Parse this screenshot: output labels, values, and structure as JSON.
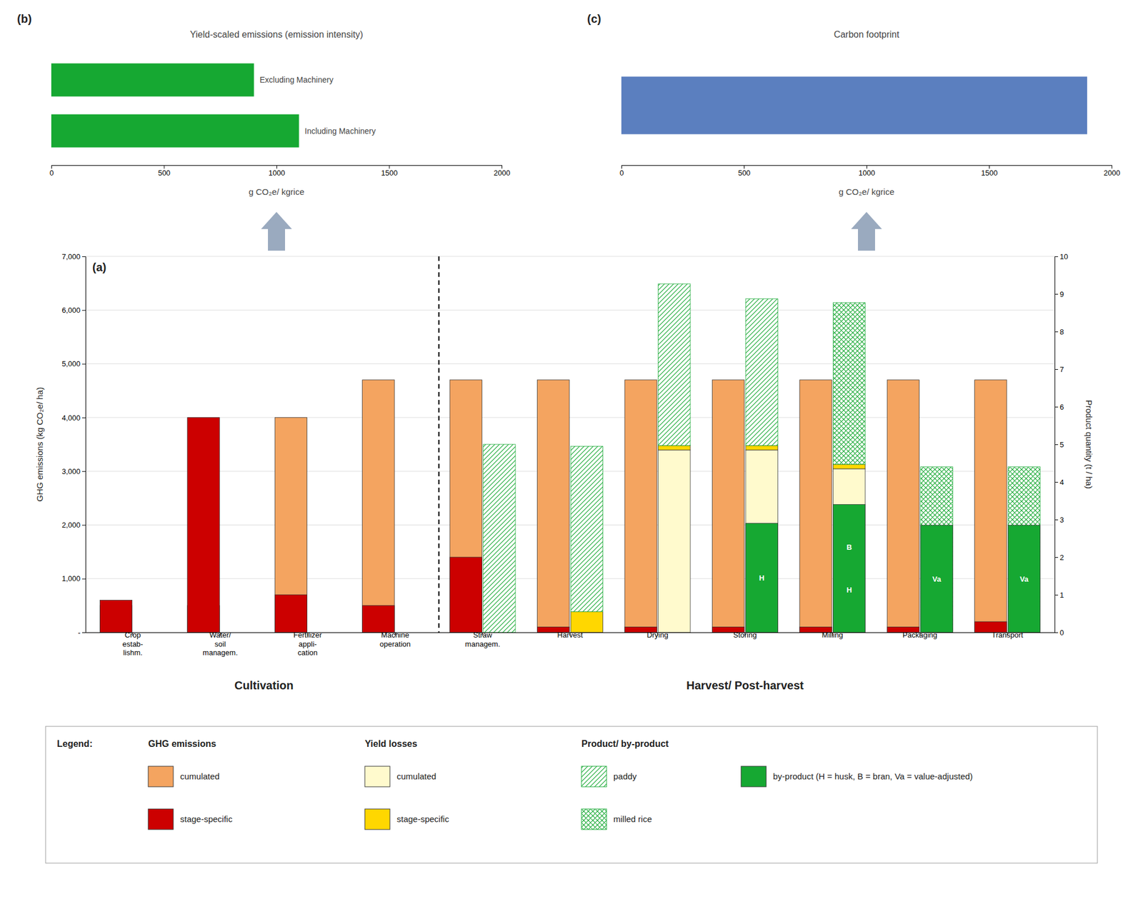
{
  "chart_data": [
    {
      "type": "bar",
      "orientation": "horizontal",
      "panel_label": "(b)",
      "title": "Yield-scaled emissions (emission intensity)",
      "xlabel": "g CO₂e/ kgrice",
      "categories": [
        "Excluding Machinery",
        "Including Machinery"
      ],
      "values": [
        900,
        1100
      ],
      "color": "#16A832",
      "xlim": [
        0,
        2000
      ],
      "xticks": [
        0,
        500,
        1000,
        1500,
        2000
      ],
      "tick_labels": "x"
    },
    {
      "type": "bar",
      "orientation": "horizontal",
      "panel_label": "(c)",
      "title": "Carbon footprint",
      "xlabel": "g CO₂e/ kgrice",
      "categories": [
        null
      ],
      "values": [
        1900
      ],
      "color": "#5B7FBF",
      "xlim": [
        0,
        2000
      ],
      "xticks": [
        0,
        500,
        1000,
        1500,
        2000
      ],
      "tick_labels": "x"
    },
    {
      "type": "bar",
      "panel_label": "(a)",
      "ylabel": "GHG emissions (kg CO₂e/ ha)",
      "y2label": "Product quantity (t / ha)",
      "categories": [
        "Crop\nestab-\nlishm.",
        "Water/\nsoil\nmanagem.",
        "Fertilizer\nappli-\ncation",
        "Machine\noperation",
        "Straw\nmanagem.",
        "Harvest",
        "Drying",
        "Storing",
        "Milling",
        "Packaging",
        "Transport"
      ],
      "ylim": [
        0,
        7000
      ],
      "yticks": [
        {
          "value": 0,
          "label": "-"
        },
        {
          "value": 1000,
          "label": "1,000"
        },
        {
          "value": 2000,
          "label": "2,000"
        },
        {
          "value": 3000,
          "label": "3,000"
        },
        {
          "value": 4000,
          "label": "4,000"
        },
        {
          "value": 5000,
          "label": "5,000"
        },
        {
          "value": 6000,
          "label": "6,000"
        },
        {
          "value": 7000,
          "label": "7,000"
        }
      ],
      "y2lim": [
        0,
        10
      ],
      "y2ticks": [
        0,
        1,
        2,
        3,
        4,
        5,
        6,
        7,
        8,
        9,
        10
      ],
      "grid": true,
      "stacked": true,
      "legend": "bottom",
      "legend_title": "Legend:",
      "sections": [
        {
          "label": "Cultivation",
          "from": "Crop\nestab-\nlishm.",
          "to": "Machine\noperation"
        },
        {
          "label": "Harvest/ Post-harvest",
          "from": "Straw\nmanagem.",
          "to": "Transport"
        }
      ],
      "series": [
        {
          "name": "cumulated",
          "group": "GHG emissions",
          "axis": "y",
          "stacked": false,
          "color": "#F4A460",
          "values": [
            500,
            500,
            4000,
            4700,
            4700,
            4700,
            4700,
            4700,
            4700,
            4700,
            4700
          ]
        },
        {
          "name": "stage-specific",
          "group": "GHG emissions",
          "axis": "y",
          "stacked": false,
          "color": "#CC0000",
          "values": [
            600,
            4000,
            700,
            500,
            1400,
            100,
            100,
            100,
            100,
            100,
            200
          ]
        },
        {
          "name": "cumulated",
          "group": "Yield losses",
          "axis": "y2",
          "color": "#FFFACD",
          "values": [
            null,
            null,
            null,
            null,
            null,
            null,
            4.85,
            4.85,
            4.35,
            null,
            null
          ]
        },
        {
          "name": "stage-specific",
          "group": "Yield losses",
          "axis": "y2",
          "color": "#FFD700",
          "values": [
            null,
            null,
            null,
            null,
            null,
            0.55,
            0.12,
            0.12,
            0.12,
            null,
            null
          ]
        },
        {
          "name": "paddy",
          "group": "Product/ by-product",
          "axis": "y2",
          "color": "#16A832",
          "marker": "hatch",
          "values": [
            null,
            null,
            null,
            null,
            5.0,
            4.4,
            4.3,
            3.9,
            null,
            null,
            null
          ]
        },
        {
          "name": "milled rice",
          "group": "Product/ by-product",
          "axis": "y2",
          "color": "#16A832",
          "marker": "crosshatch",
          "values": [
            null,
            null,
            null,
            null,
            null,
            null,
            null,
            null,
            4.3,
            4.4,
            4.4
          ]
        },
        {
          "name": "by-product (H = husk, B = bran, Va = value-adjusted)",
          "group": "Product/ by-product",
          "axis": "y2",
          "stacked": false,
          "color": "#16A832",
          "values": [
            null,
            null,
            null,
            null,
            null,
            null,
            null,
            2.9,
            3.4,
            2.85,
            2.85
          ],
          "annotations": [
            null,
            null,
            null,
            null,
            null,
            null,
            null,
            [
              "H"
            ],
            [
              "B",
              "H"
            ],
            [
              "Va"
            ],
            [
              "Va"
            ]
          ]
        }
      ]
    }
  ]
}
